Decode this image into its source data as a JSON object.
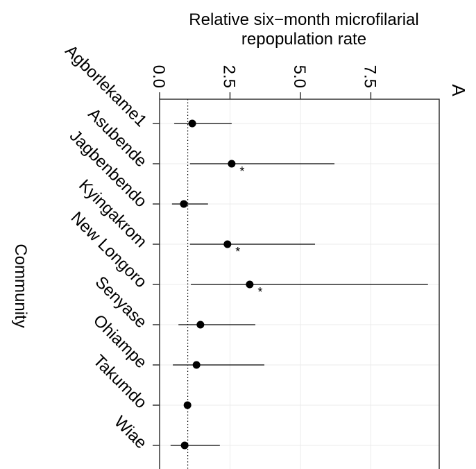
{
  "chart_data": {
    "type": "forest",
    "title": [
      "Relative six−month microfilarial",
      "repopulation rate"
    ],
    "y_label": "Community",
    "panel_tag": "A",
    "categories": [
      "Agborlekame1",
      "Asubende",
      "Jagbenbendo",
      "Kyingakrom",
      "New Longoro",
      "Senyase",
      "Ohiampe",
      "Takumdo",
      "Wiae"
    ],
    "values": [
      1.16,
      2.56,
      0.86,
      2.41,
      3.2,
      1.45,
      1.31,
      0.99,
      0.89
    ],
    "lower": [
      0.52,
      1.08,
      0.44,
      1.08,
      1.11,
      0.67,
      0.47,
      0.92,
      0.39
    ],
    "upper": [
      2.56,
      6.21,
      1.72,
      5.52,
      9.53,
      3.4,
      3.72,
      1.07,
      2.14
    ],
    "significance": [
      null,
      "*",
      null,
      "*",
      "*",
      null,
      null,
      null,
      null
    ],
    "reference_line": 1,
    "xlim": [
      0,
      9.93
    ],
    "xticks": [
      {
        "value": 0,
        "label": "0.0"
      },
      2.5,
      {
        "value": 5,
        "label": "5.0"
      },
      7.5
    ],
    "color": "#000000",
    "grid": true
  }
}
